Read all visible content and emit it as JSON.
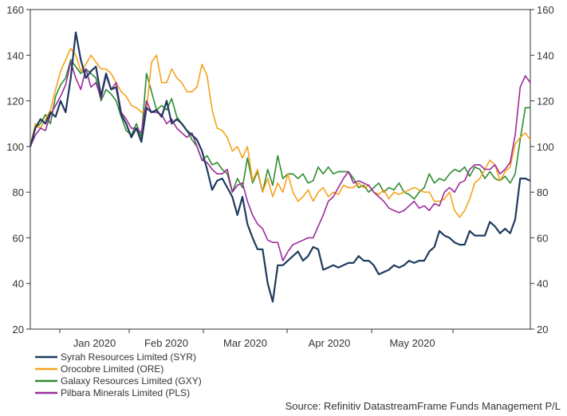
{
  "chart_data": {
    "type": "line",
    "x_tick_labels": [
      "Jan 2020",
      "Feb 2020",
      "Mar 2020",
      "Apr 2020",
      "May 2020"
    ],
    "ylim": [
      20,
      160
    ],
    "y_ticks": [
      20,
      40,
      60,
      80,
      100,
      120,
      140,
      160
    ],
    "y_axis_both_sides": true,
    "grid": false,
    "legend_position": "bottom-left",
    "source": "Source: Refinitiv DatastreamFrame Funds Management P/L",
    "series": [
      {
        "name": "Syrah Resources Limited (SYR)",
        "color": "#1f3a5f",
        "values": [
          100,
          108,
          112,
          110,
          115,
          113,
          120,
          115,
          130,
          150,
          138,
          130,
          133,
          135,
          122,
          132,
          125,
          126,
          114,
          110,
          104,
          108,
          102,
          117,
          115,
          116,
          113,
          120,
          110,
          112,
          110,
          107,
          105,
          103,
          98,
          90,
          81,
          85,
          86,
          82,
          78,
          70,
          78,
          66,
          60,
          55,
          55,
          40,
          32,
          48,
          48,
          50,
          52,
          54,
          50,
          52,
          56,
          55,
          46,
          47,
          48,
          47,
          48,
          49,
          49,
          52,
          50,
          50,
          48,
          44,
          45,
          46,
          48,
          47,
          48,
          50,
          49,
          50,
          50,
          54,
          56,
          63,
          61,
          60,
          58,
          57,
          57,
          63,
          61,
          61,
          61,
          67,
          65,
          62,
          64,
          62,
          68,
          86,
          86,
          85
        ]
      },
      {
        "name": "Orocobre Limited (ORE)",
        "color": "#f5a21b",
        "values": [
          100,
          110,
          108,
          112,
          116,
          125,
          133,
          138,
          143,
          140,
          133,
          136,
          140,
          137,
          134,
          134,
          132,
          128,
          124,
          122,
          118,
          117,
          115,
          116,
          137,
          140,
          128,
          128,
          134,
          130,
          128,
          124,
          124,
          126,
          136,
          131,
          116,
          108,
          107,
          104,
          98,
          100,
          95,
          100,
          85,
          90,
          80,
          86,
          78,
          84,
          80,
          88,
          80,
          76,
          78,
          81,
          76,
          80,
          82,
          78,
          80,
          79,
          83,
          82,
          82,
          84,
          82,
          83,
          80,
          79,
          81,
          77,
          80,
          79,
          80,
          81,
          82,
          81,
          80,
          80,
          76,
          76,
          77,
          80,
          72,
          69,
          72,
          77,
          84,
          86,
          90,
          94,
          92,
          85,
          89,
          91,
          101,
          104,
          106,
          103
        ]
      },
      {
        "name": "Galaxy Resources Limited (GXY)",
        "color": "#2e8b2e",
        "values": [
          100,
          108,
          110,
          114,
          110,
          122,
          127,
          130,
          138,
          135,
          132,
          134,
          132,
          130,
          120,
          125,
          123,
          120,
          113,
          107,
          105,
          110,
          104,
          132,
          124,
          116,
          118,
          116,
          121,
          113,
          110,
          107,
          103,
          100,
          94,
          96,
          92,
          93,
          90,
          88,
          80,
          86,
          82,
          95,
          84,
          89,
          80,
          90,
          83,
          96,
          86,
          88,
          88,
          86,
          88,
          84,
          85,
          91,
          88,
          91,
          88,
          89,
          89,
          89,
          86,
          82,
          83,
          80,
          82,
          84,
          80,
          82,
          81,
          84,
          80,
          79,
          77,
          80,
          82,
          88,
          84,
          86,
          85,
          88,
          90,
          89,
          91,
          87,
          91,
          90,
          86,
          89,
          86,
          85,
          87,
          84,
          88,
          103,
          117,
          117
        ]
      },
      {
        "name": "Pilbara Minerals Limited (PLS)",
        "color": "#9b2a9b",
        "values": [
          100,
          105,
          108,
          107,
          114,
          118,
          122,
          127,
          137,
          130,
          125,
          134,
          126,
          128,
          121,
          131,
          125,
          128,
          115,
          112,
          108,
          108,
          106,
          120,
          115,
          115,
          114,
          110,
          112,
          108,
          106,
          104,
          106,
          100,
          94,
          93,
          90,
          88,
          88,
          90,
          80,
          83,
          84,
          76,
          70,
          66,
          64,
          59,
          58,
          58,
          50,
          54,
          57,
          58,
          59,
          60,
          60,
          65,
          70,
          76,
          78,
          82,
          86,
          89,
          84,
          85,
          84,
          83,
          80,
          78,
          76,
          73,
          72,
          71,
          72,
          74,
          76,
          73,
          74,
          72,
          75,
          74,
          80,
          82,
          80,
          84,
          85,
          90,
          92,
          92,
          90,
          90,
          92,
          88,
          90,
          93,
          105,
          126,
          131,
          128
        ]
      }
    ]
  }
}
